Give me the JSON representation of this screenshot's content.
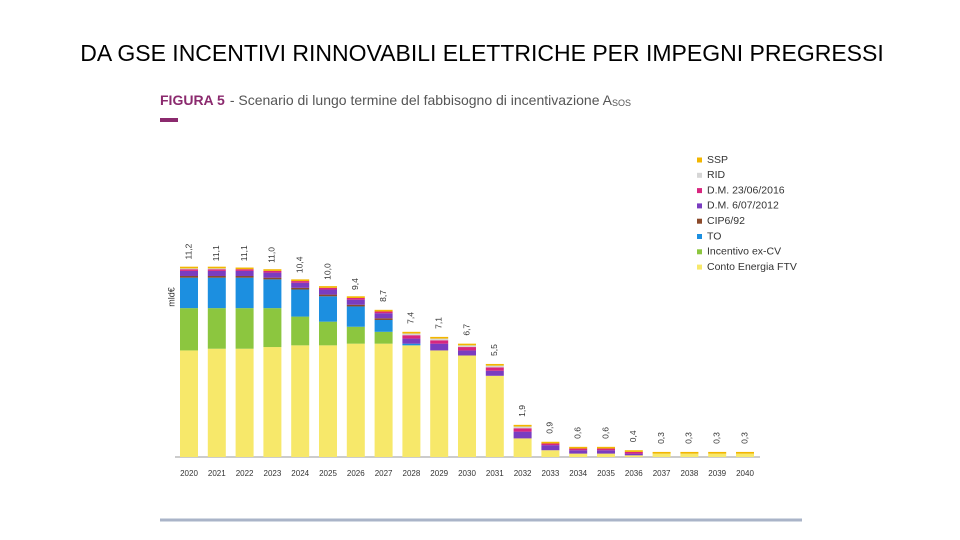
{
  "heading": "DA GSE INCENTIVI RINNOVABILI ELETTRICHE PER IMPEGNI PREGRESSI",
  "chart_data": {
    "type": "stacked_bar",
    "figure_label": "FIGURA 5",
    "title": "- Scenario di lungo termine del fabbisogno di incentivazione A",
    "title_subscript": "SOS",
    "y_label": "mld€",
    "categories": [
      "2020",
      "2021",
      "2022",
      "2023",
      "2024",
      "2025",
      "2026",
      "2027",
      "2028",
      "2029",
      "2030",
      "2031",
      "2032",
      "2033",
      "2034",
      "2035",
      "2036",
      "2037",
      "2038",
      "2039",
      "2040"
    ],
    "ylim": [
      0,
      12
    ],
    "series": [
      {
        "name": "Conto Energia FTV",
        "color": "#f7e86a",
        "values": [
          6.3,
          6.4,
          6.4,
          6.5,
          6.6,
          6.6,
          6.7,
          6.7,
          6.6,
          6.3,
          6.0,
          4.8,
          1.1,
          0.4,
          0.2,
          0.2,
          0.1,
          0.2,
          0.2,
          0.2,
          0.2
        ]
      },
      {
        "name": "Incentivo ex-CV",
        "color": "#8cc63f",
        "values": [
          2.5,
          2.4,
          2.4,
          2.3,
          1.7,
          1.4,
          1.0,
          0.7,
          0,
          0,
          0,
          0,
          0,
          0,
          0,
          0,
          0,
          0,
          0,
          0,
          0
        ]
      },
      {
        "name": "TO",
        "color": "#1c8fe0",
        "values": [
          1.8,
          1.8,
          1.8,
          1.7,
          1.6,
          1.5,
          1.2,
          0.7,
          0.1,
          0,
          0,
          0,
          0,
          0,
          0,
          0,
          0,
          0,
          0,
          0,
          0
        ]
      },
      {
        "name": "CIP6/92",
        "color": "#8b4a2b",
        "values": [
          0.1,
          0.1,
          0.1,
          0.1,
          0.1,
          0.1,
          0.1,
          0.1,
          0,
          0,
          0,
          0,
          0,
          0,
          0,
          0,
          0,
          0,
          0,
          0,
          0
        ]
      },
      {
        "name": "D.M.  6/07/2012",
        "color": "#7a3cc0",
        "values": [
          0.3,
          0.3,
          0.3,
          0.3,
          0.3,
          0.3,
          0.3,
          0.3,
          0.3,
          0.4,
          0.3,
          0.3,
          0.4,
          0.3,
          0.2,
          0.2,
          0.1,
          0,
          0,
          0,
          0
        ]
      },
      {
        "name": "D.M. 23/06/2016",
        "color": "#d8267f",
        "values": [
          0.1,
          0.1,
          0.1,
          0.1,
          0.1,
          0.1,
          0.1,
          0.1,
          0.2,
          0.2,
          0.2,
          0.2,
          0.2,
          0.1,
          0.1,
          0.1,
          0.1,
          0,
          0,
          0,
          0
        ]
      },
      {
        "name": "RID",
        "color": "#d6d6d6",
        "values": [
          0.05,
          0.05,
          0,
          0,
          0,
          0,
          0,
          0,
          0.1,
          0.1,
          0.1,
          0.1,
          0.1,
          0,
          0,
          0,
          0,
          0,
          0,
          0,
          0
        ]
      },
      {
        "name": "SSP",
        "color": "#f2b600",
        "values": [
          0.1,
          0.1,
          0.1,
          0.1,
          0.1,
          0.1,
          0.1,
          0.1,
          0.1,
          0.1,
          0.1,
          0.1,
          0.1,
          0.1,
          0.1,
          0.1,
          0.1,
          0.1,
          0.1,
          0.1,
          0.1
        ]
      }
    ],
    "totals": [
      11.2,
      11.1,
      11.1,
      11.0,
      10.4,
      10.0,
      9.4,
      8.7,
      7.4,
      7.1,
      6.7,
      5.5,
      1.9,
      0.9,
      0.6,
      0.6,
      0.4,
      0.3,
      0.3,
      0.3,
      0.3
    ],
    "total_labels": [
      "11,2",
      "11,1",
      "11,1",
      "11,0",
      "10,4",
      "10,0",
      "9,4",
      "8,7",
      "7,4",
      "7,1",
      "6,7",
      "5,5",
      "1,9",
      "0,9",
      "0,6",
      "0,6",
      "0,4",
      "0,3",
      "0,3",
      "0,3",
      "0,3"
    ],
    "legend_position": "upper right"
  }
}
